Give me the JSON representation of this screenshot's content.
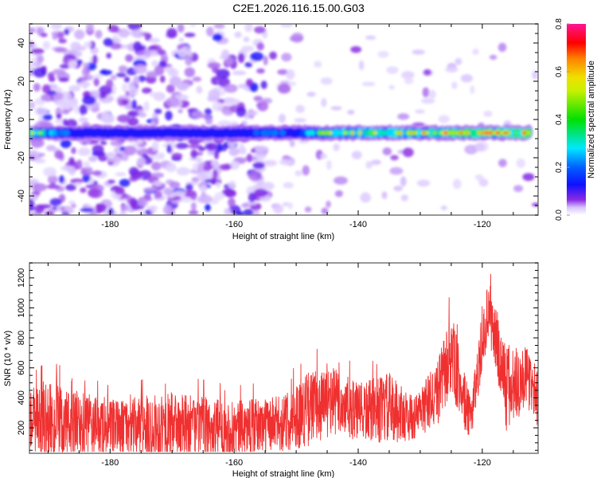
{
  "title": "C2E1.2026.116.15.00.G03",
  "chart_data": [
    {
      "type": "heatmap",
      "name": "spectrogram",
      "xlabel": "Height of straight line (km)",
      "ylabel": "Frequency (Hz)",
      "xlim": [
        -193,
        -111
      ],
      "ylim": [
        -50,
        50
      ],
      "xticks": [
        -180,
        -160,
        -140,
        -120
      ],
      "xtick_labels": [
        "-180",
        "-160",
        "-140",
        "-120"
      ],
      "yticks": [
        -40,
        -20,
        0,
        20,
        40
      ],
      "ytick_labels": [
        "-40",
        "-20",
        "0",
        "20",
        "40"
      ],
      "signal_band": {
        "frequency_hz": -7,
        "description": "Continuous narrow band near -7 Hz spanning full height range; amplitude grows toward higher (less negative) heights",
        "amplitude_profile": [
          {
            "x": -192,
            "amp": 0.5
          },
          {
            "x": -185,
            "amp": 0.18
          },
          {
            "x": -175,
            "amp": 0.2
          },
          {
            "x": -165,
            "amp": 0.22
          },
          {
            "x": -158,
            "amp": 0.25
          },
          {
            "x": -150,
            "amp": 0.3
          },
          {
            "x": -145,
            "amp": 0.55
          },
          {
            "x": -138,
            "amp": 0.6
          },
          {
            "x": -132,
            "amp": 0.6
          },
          {
            "x": -126,
            "amp": 0.72
          },
          {
            "x": -120,
            "amp": 0.72
          },
          {
            "x": -114,
            "amp": 0.7
          }
        ]
      },
      "background_noise": "Dense purple noise blobs for heights below about -155 km; sparse faint noise above",
      "colorbar": {
        "label": "Normalized spectral amplitude",
        "range": [
          0.0,
          0.8
        ],
        "ticks": [
          0.0,
          0.2,
          0.4,
          0.6,
          0.8
        ],
        "tick_labels": [
          "0.0",
          "0.2",
          "0.4",
          "0.6",
          "0.8"
        ],
        "colors": [
          "#ffffff",
          "#e6d6ff",
          "#8a2be2",
          "#1010ff",
          "#00e0ff",
          "#00e000",
          "#f0f000",
          "#ff8000",
          "#ff0000",
          "#ff1493"
        ]
      }
    },
    {
      "type": "line",
      "name": "snr",
      "xlabel": "Height of straight line (km)",
      "ylabel": "SNR (10 * v/v)",
      "xlim": [
        -193,
        -111
      ],
      "ylim": [
        30,
        1300
      ],
      "xticks": [
        -180,
        -160,
        -140,
        -120
      ],
      "xtick_labels": [
        "-180",
        "-160",
        "-140",
        "-120"
      ],
      "yticks": [
        200,
        400,
        600,
        800,
        1000,
        1200
      ],
      "ytick_labels": [
        "200",
        "400",
        "600",
        "800",
        "1000",
        "1200"
      ],
      "color": "#f03030",
      "envelope": [
        {
          "x": -193,
          "mean": 250,
          "max": 550
        },
        {
          "x": -190,
          "mean": 230,
          "max": 650
        },
        {
          "x": -180,
          "mean": 200,
          "max": 480
        },
        {
          "x": -170,
          "mean": 210,
          "max": 560
        },
        {
          "x": -160,
          "mean": 190,
          "max": 480
        },
        {
          "x": -152,
          "mean": 230,
          "max": 520
        },
        {
          "x": -148,
          "mean": 330,
          "max": 720
        },
        {
          "x": -144,
          "mean": 380,
          "max": 740
        },
        {
          "x": -140,
          "mean": 300,
          "max": 600
        },
        {
          "x": -135,
          "mean": 330,
          "max": 700
        },
        {
          "x": -131,
          "mean": 260,
          "max": 480
        },
        {
          "x": -127,
          "mean": 450,
          "max": 800
        },
        {
          "x": -125,
          "mean": 700,
          "max": 1130
        },
        {
          "x": -122,
          "mean": 250,
          "max": 500
        },
        {
          "x": -119,
          "mean": 1000,
          "max": 1300
        },
        {
          "x": -116,
          "mean": 450,
          "max": 950
        },
        {
          "x": -113,
          "mean": 550,
          "max": 850
        },
        {
          "x": -111,
          "mean": 400,
          "max": 700
        }
      ]
    }
  ]
}
